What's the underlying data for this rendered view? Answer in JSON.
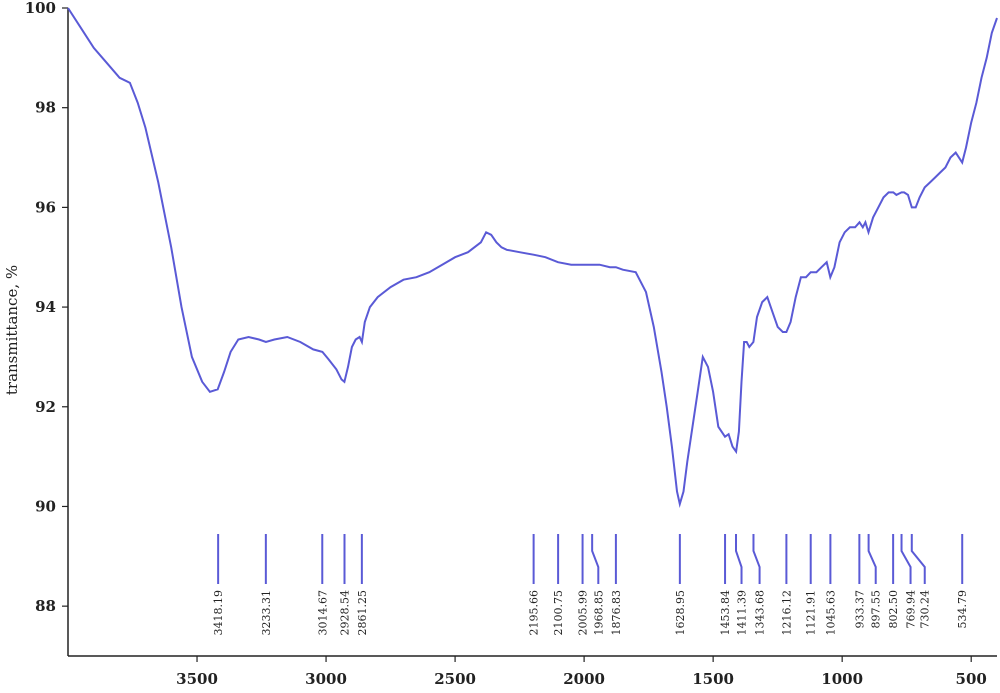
{
  "chart_data": {
    "type": "line",
    "ylabel": "transmittance, %",
    "xlabel": "",
    "xlim": [
      4000,
      400
    ],
    "ylim": [
      87,
      100
    ],
    "x_ticks": [
      "3500",
      "3000",
      "2500",
      "2000",
      "1500",
      "1000",
      "500"
    ],
    "y_ticks": [
      "100",
      "98",
      "96",
      "94",
      "92",
      "90",
      "88"
    ],
    "line_color": "#5a5ad6",
    "series": [
      {
        "x": [
          4000,
          3950,
          3900,
          3850,
          3800,
          3760,
          3730,
          3700,
          3650,
          3600,
          3560,
          3520,
          3480,
          3450,
          3420,
          3395,
          3370,
          3340,
          3300,
          3260,
          3233,
          3200,
          3150,
          3100,
          3050,
          3014,
          2990,
          2960,
          2940,
          2929,
          2915,
          2900,
          2885,
          2870,
          2861,
          2850,
          2830,
          2800,
          2750,
          2700,
          2650,
          2600,
          2550,
          2500,
          2450,
          2400,
          2380,
          2360,
          2340,
          2320,
          2300,
          2250,
          2196,
          2150,
          2101,
          2050,
          2006,
          1969,
          1940,
          1900,
          1877,
          1850,
          1800,
          1760,
          1730,
          1700,
          1680,
          1660,
          1640,
          1629,
          1615,
          1600,
          1580,
          1560,
          1540,
          1520,
          1500,
          1480,
          1454,
          1440,
          1425,
          1411,
          1400,
          1390,
          1380,
          1370,
          1360,
          1344,
          1330,
          1310,
          1290,
          1270,
          1250,
          1230,
          1216,
          1200,
          1180,
          1160,
          1140,
          1122,
          1100,
          1080,
          1060,
          1046,
          1030,
          1010,
          990,
          970,
          950,
          933,
          920,
          910,
          898,
          880,
          860,
          840,
          820,
          802,
          790,
          770,
          760,
          745,
          730,
          715,
          700,
          680,
          660,
          640,
          620,
          600,
          580,
          560,
          535,
          520,
          500,
          480,
          460,
          440,
          420,
          400
        ],
        "values": [
          100,
          99.6,
          99.2,
          98.9,
          98.6,
          98.5,
          98.1,
          97.6,
          96.5,
          95.2,
          94.0,
          93.0,
          92.5,
          92.3,
          92.35,
          92.7,
          93.1,
          93.35,
          93.4,
          93.35,
          93.3,
          93.35,
          93.4,
          93.3,
          93.15,
          93.1,
          92.95,
          92.75,
          92.55,
          92.5,
          92.8,
          93.2,
          93.35,
          93.4,
          93.3,
          93.7,
          94.0,
          94.2,
          94.4,
          94.55,
          94.6,
          94.7,
          94.85,
          95.0,
          95.1,
          95.3,
          95.5,
          95.45,
          95.3,
          95.2,
          95.15,
          95.1,
          95.05,
          95.0,
          94.9,
          94.85,
          94.85,
          94.85,
          94.85,
          94.8,
          94.8,
          94.75,
          94.7,
          94.3,
          93.6,
          92.7,
          92.0,
          91.2,
          90.3,
          90.05,
          90.3,
          90.9,
          91.6,
          92.3,
          93.0,
          92.8,
          92.3,
          91.6,
          91.4,
          91.45,
          91.2,
          91.1,
          91.5,
          92.5,
          93.3,
          93.3,
          93.2,
          93.3,
          93.8,
          94.1,
          94.2,
          93.9,
          93.6,
          93.5,
          93.5,
          93.7,
          94.2,
          94.6,
          94.6,
          94.7,
          94.7,
          94.8,
          94.9,
          94.6,
          94.8,
          95.3,
          95.5,
          95.6,
          95.6,
          95.7,
          95.6,
          95.7,
          95.5,
          95.8,
          96.0,
          96.2,
          96.3,
          96.3,
          96.25,
          96.3,
          96.3,
          96.25,
          96.0,
          96.0,
          96.2,
          96.4,
          96.5,
          96.6,
          96.7,
          96.8,
          97.0,
          97.1,
          96.9,
          97.2,
          97.7,
          98.1,
          98.6,
          99.0,
          99.5,
          99.8
        ]
      }
    ],
    "peak_markers": [
      {
        "label": "3418.19",
        "x": 3418.19
      },
      {
        "label": "3233.31",
        "x": 3233.31
      },
      {
        "label": "3014.67",
        "x": 3014.67
      },
      {
        "label": "2928.54",
        "x": 2928.54
      },
      {
        "label": "2861.25",
        "x": 2861.25
      },
      {
        "label": "2195.66",
        "x": 2195.66
      },
      {
        "label": "2100.75",
        "x": 2100.75
      },
      {
        "label": "2005.99",
        "x": 2005.99
      },
      {
        "label": "1968.85",
        "x": 1968.85,
        "label_x": 1945
      },
      {
        "label": "1876.83",
        "x": 1876.83
      },
      {
        "label": "1628.95",
        "x": 1628.95
      },
      {
        "label": "1453.84",
        "x": 1453.84
      },
      {
        "label": "1411.39",
        "x": 1411.39,
        "label_x": 1390
      },
      {
        "label": "1343.68",
        "x": 1343.68,
        "label_x": 1320
      },
      {
        "label": "1216.12",
        "x": 1216.12
      },
      {
        "label": "1121.91",
        "x": 1121.91
      },
      {
        "label": "1045.63",
        "x": 1045.63
      },
      {
        "label": "933.37",
        "x": 933.37
      },
      {
        "label": "897.55",
        "x": 897.55,
        "label_x": 870
      },
      {
        "label": "802.50",
        "x": 802.5
      },
      {
        "label": "769.94",
        "x": 769.94,
        "label_x": 735
      },
      {
        "label": "730.24",
        "x": 730.24,
        "label_x": 680
      },
      {
        "label": "534.79",
        "x": 534.79
      }
    ]
  }
}
